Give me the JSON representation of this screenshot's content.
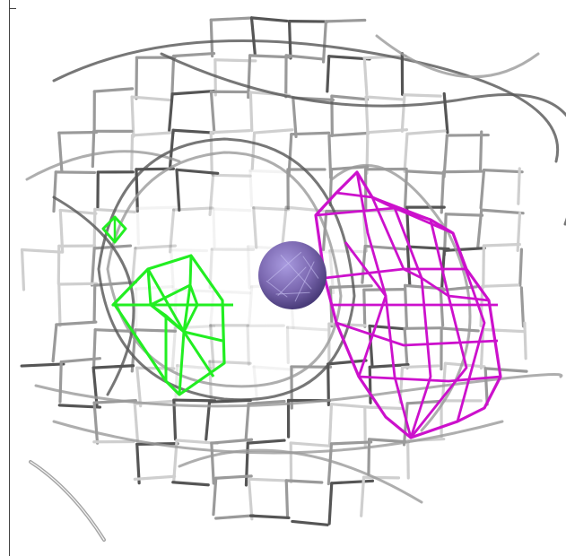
{
  "scene": {
    "kind": "electron-density-mesh",
    "background": "#ffffff",
    "colors": {
      "mesh_grey": "#9a9a9a",
      "mesh_dark": "#555555",
      "mesh_light": "#cfcfcf",
      "positive_density": "#22ee22",
      "negative_density": "#cc11cc",
      "ion_sphere": "#7b68b0"
    },
    "objects": [
      {
        "name": "grey-density-mesh",
        "color_key": "mesh_grey"
      },
      {
        "name": "green-density-blob",
        "color_key": "positive_density"
      },
      {
        "name": "magenta-density-blob",
        "color_key": "negative_density"
      },
      {
        "name": "ion-sphere",
        "color_key": "ion_sphere"
      }
    ]
  }
}
